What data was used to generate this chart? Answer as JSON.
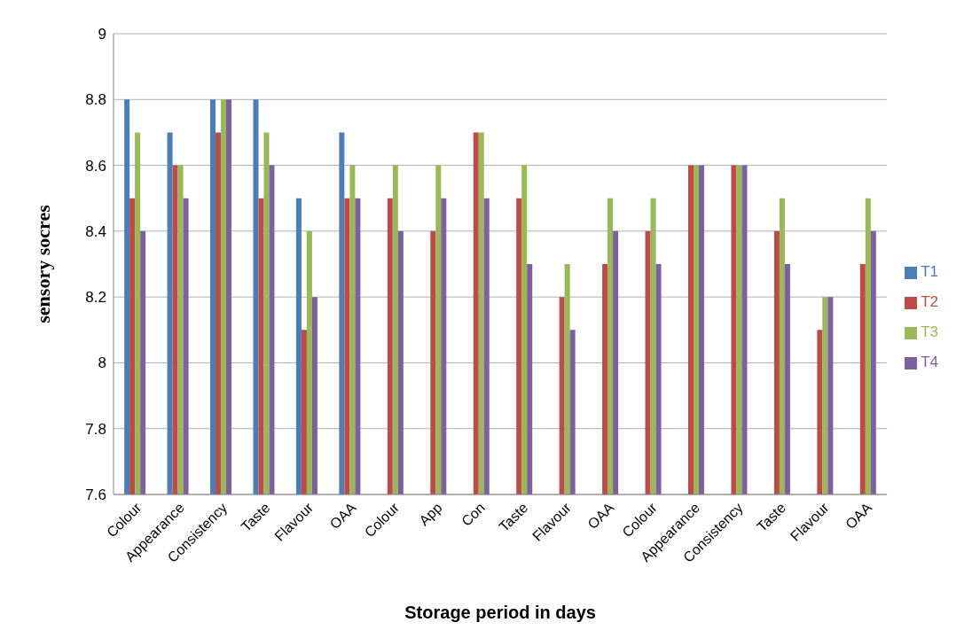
{
  "chart_data": {
    "type": "bar",
    "xlabel": "Storage period in days",
    "ylabel": "sensory socres",
    "categories": [
      "Colour",
      "Appearance",
      "Consistency",
      "Taste",
      "Flavour",
      "OAA",
      "Colour",
      "App",
      "Con",
      "Taste",
      "Flavour",
      "OAA",
      "Colour",
      "Appearance",
      "Consistency",
      "Taste",
      "Flavour",
      "OAA"
    ],
    "series": [
      {
        "name": "T1",
        "color": "#4a7ebb",
        "values": [
          8.8,
          8.7,
          8.8,
          8.8,
          8.5,
          8.7,
          null,
          null,
          null,
          null,
          null,
          null,
          null,
          null,
          null,
          null,
          null,
          null
        ]
      },
      {
        "name": "T2",
        "color": "#be4b48",
        "values": [
          8.5,
          8.6,
          8.7,
          8.5,
          8.1,
          8.5,
          8.5,
          8.4,
          8.7,
          8.5,
          8.2,
          8.3,
          8.4,
          8.6,
          8.6,
          8.4,
          8.1,
          8.3
        ]
      },
      {
        "name": "T3",
        "color": "#98b954",
        "values": [
          8.7,
          8.6,
          8.8,
          8.7,
          8.4,
          8.6,
          8.6,
          8.6,
          8.7,
          8.6,
          8.3,
          8.5,
          8.5,
          8.6,
          8.6,
          8.5,
          8.2,
          8.5
        ]
      },
      {
        "name": "T4",
        "color": "#7d60a0",
        "values": [
          8.4,
          8.5,
          8.8,
          8.6,
          8.2,
          8.5,
          8.4,
          8.5,
          8.5,
          8.3,
          8.1,
          8.4,
          8.3,
          8.6,
          8.6,
          8.3,
          8.2,
          8.4
        ]
      }
    ],
    "ylim": [
      7.6,
      9
    ],
    "yticks": [
      7.6,
      7.8,
      8,
      8.2,
      8.4,
      8.6,
      8.8,
      9
    ],
    "grid": "y",
    "legend": "right"
  }
}
